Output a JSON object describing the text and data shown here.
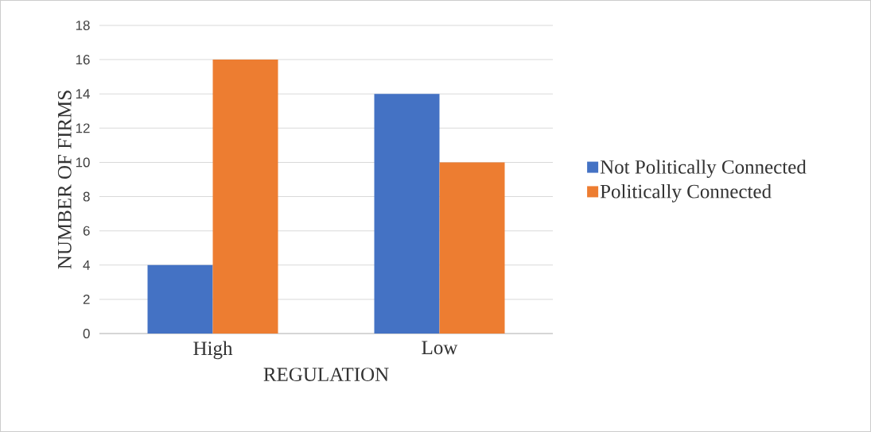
{
  "chart_data": {
    "type": "bar",
    "xlabel": "REGULATION",
    "ylabel": "NUMBER OF FIRMS",
    "categories": [
      "High",
      "Low"
    ],
    "series": [
      {
        "name": "Not Politically Connected",
        "color": "#4472c4",
        "values": [
          4,
          14
        ]
      },
      {
        "name": "Politically Connected",
        "color": "#ed7d31",
        "values": [
          16,
          10
        ]
      }
    ],
    "ylim": [
      0,
      18
    ],
    "yticks": [
      0,
      2,
      4,
      6,
      8,
      10,
      12,
      14,
      16,
      18
    ],
    "grid": "y",
    "legend": "right"
  }
}
